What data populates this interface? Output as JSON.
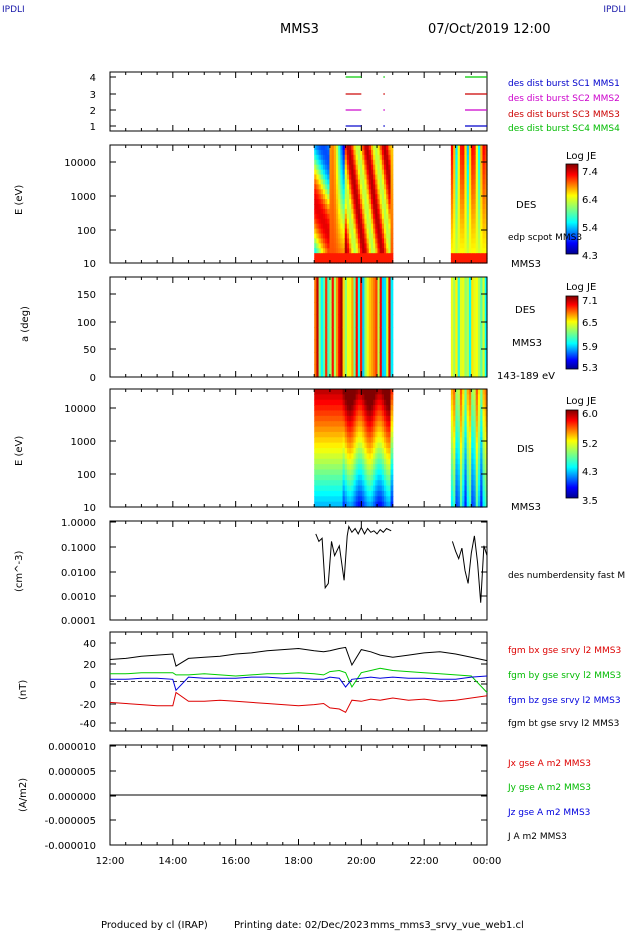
{
  "header": {
    "corner_label": "IPDLI",
    "spacecraft": "MMS3",
    "date_time": "07/Oct/2019 12:00"
  },
  "footer": {
    "produced_by": "Produced by cl (IRAP)",
    "printing_date": "Printing date: 02/Dec/2023",
    "filename": "mms_mms3_srvy_vue_web1.cl"
  },
  "colors": {
    "sc1": "#0000cc",
    "sc2": "#cc00cc",
    "sc3": "#cc0000",
    "sc4": "#00cc00",
    "bx": "#dd0000",
    "by": "#00cc00",
    "bz": "#0000dd",
    "bt": "#000000"
  },
  "panels": {
    "burst": {
      "ytick_labels": [
        "4",
        "3",
        "2",
        "1"
      ],
      "legend": [
        "des dist burst SC1 MMS1",
        "des dist burst SC2 MMS2",
        "des dist burst SC3 MMS3",
        "des dist burst SC4 MMS4"
      ]
    },
    "des_energy": {
      "ylabel": "E (eV)",
      "ytick_labels": [
        "10000",
        "1000",
        "100",
        "10"
      ],
      "species": "DES",
      "note": "edp scpot MMS3",
      "spacecraft": "MMS3",
      "cb_title": "Log JE",
      "cb_ticks": [
        "7.4",
        "6.4",
        "5.4",
        "4.3"
      ]
    },
    "des_pitch": {
      "ylabel": "a (deg)",
      "ytick_labels": [
        "150",
        "100",
        "50",
        "0"
      ],
      "species": "DES",
      "spacecraft": "MMS3",
      "energy_range": "143-189 eV",
      "cb_title": "Log JE",
      "cb_ticks": [
        "7.1",
        "6.5",
        "5.9",
        "5.3"
      ]
    },
    "dis_energy": {
      "ylabel": "E (eV)",
      "ytick_labels": [
        "10000",
        "1000",
        "100",
        "10"
      ],
      "species": "DIS",
      "spacecraft": "MMS3",
      "cb_title": "Log JE",
      "cb_ticks": [
        "6.0",
        "5.2",
        "4.3",
        "3.5"
      ]
    },
    "density": {
      "ylabel": "(cm^-3)",
      "ytick_labels": [
        "1.0000",
        "0.1000",
        "0.0100",
        "0.0010",
        "0.0001"
      ],
      "legend": "des numberdensity fast M"
    },
    "bfield": {
      "ylabel": "(nT)",
      "ytick_labels": [
        "40",
        "20",
        "0",
        "-20",
        "-40"
      ],
      "legend": [
        "fgm bx gse srvy l2 MMS3",
        "fgm by gse srvy l2 MMS3",
        "fgm bz gse srvy l2 MMS3",
        "fgm bt gse srvy l2 MMS3"
      ]
    },
    "current": {
      "ylabel": "(A/m2)",
      "ytick_labels": [
        "0.000010",
        "0.000005",
        "0.000000",
        "-0.000005",
        "-0.000010"
      ],
      "legend": [
        "Jx gse A m2 MMS3",
        "Jy gse A m2 MMS3",
        "Jz gse A m2 MMS3",
        "J A m2 MMS3"
      ]
    }
  },
  "xaxis": {
    "tick_labels": [
      "12:00",
      "14:00",
      "16:00",
      "18:00",
      "20:00",
      "22:00",
      "00:00"
    ]
  },
  "chart_data": {
    "type": "line",
    "x_unit": "hours since 07/Oct/2019 12:00 UT",
    "xlim": [
      12,
      24
    ],
    "data_intervals": [
      [
        18.5,
        21.0
      ],
      [
        22.85,
        24.0
      ]
    ],
    "burst_intervals": {
      "MMS1": [
        [
          19.5,
          20.0
        ],
        [
          20.7,
          20.75
        ],
        [
          23.3,
          24.0
        ]
      ],
      "MMS2": [
        [
          19.5,
          20.0
        ],
        [
          20.7,
          20.75
        ],
        [
          23.3,
          24.0
        ]
      ],
      "MMS3": [
        [
          19.5,
          20.0
        ],
        [
          20.7,
          20.75
        ],
        [
          23.3,
          24.0
        ]
      ],
      "MMS4": [
        [
          19.5,
          20.0
        ],
        [
          20.7,
          20.75
        ],
        [
          23.3,
          24.0
        ]
      ]
    },
    "density": {
      "ylim": [
        0.0001,
        1.0
      ],
      "scale": "log",
      "x": [
        18.55,
        18.65,
        18.75,
        18.85,
        18.95,
        19.05,
        19.15,
        19.3,
        19.45,
        19.55,
        19.6,
        19.7,
        19.8,
        19.9,
        20.0,
        20.1,
        20.2,
        20.3,
        20.4,
        20.5,
        20.6,
        20.7,
        20.8,
        20.95,
        22.9,
        23.0,
        23.1,
        23.2,
        23.3,
        23.4,
        23.5,
        23.6,
        23.7,
        23.8,
        23.9,
        24.0
      ],
      "y": [
        0.3,
        0.15,
        0.2,
        0.002,
        0.003,
        0.15,
        0.04,
        0.1,
        0.004,
        0.25,
        0.6,
        0.35,
        0.5,
        0.3,
        0.55,
        0.3,
        0.5,
        0.35,
        0.4,
        0.3,
        0.45,
        0.35,
        0.5,
        0.4,
        0.15,
        0.06,
        0.03,
        0.08,
        0.01,
        0.003,
        0.05,
        0.25,
        0.02,
        0.0005,
        0.1,
        0.04
      ]
    },
    "bfield": {
      "ylim": [
        -45,
        45
      ],
      "x": [
        12.0,
        12.5,
        13.0,
        13.5,
        14.0,
        14.1,
        14.5,
        15.0,
        15.5,
        16.0,
        16.5,
        17.0,
        17.5,
        18.0,
        18.5,
        18.8,
        19.0,
        19.3,
        19.5,
        19.7,
        20.0,
        20.3,
        20.6,
        21.0,
        21.5,
        22.0,
        22.5,
        23.0,
        23.5,
        24.0
      ],
      "series": [
        {
          "name": "fgm bx gse srvy l2 MMS3",
          "values": [
            -19,
            -20,
            -21,
            -22,
            -22,
            -10,
            -18,
            -18,
            -17,
            -18,
            -19,
            -20,
            -21,
            -22,
            -21,
            -20,
            -24,
            -25,
            -28,
            -17,
            -18,
            -16,
            -17,
            -15,
            -17,
            -16,
            -18,
            -17,
            -15,
            -13
          ]
        },
        {
          "name": "fgm by gse srvy l2 MMS3",
          "values": [
            7,
            7,
            8,
            8,
            8,
            6,
            6,
            7,
            6,
            5,
            6,
            7,
            7,
            8,
            7,
            6,
            9,
            10,
            8,
            -5,
            8,
            10,
            12,
            10,
            9,
            8,
            7,
            6,
            5,
            -10
          ]
        },
        {
          "name": "fgm bz gse srvy l2 MMS3",
          "values": [
            2,
            2,
            3,
            3,
            2,
            -8,
            4,
            3,
            3,
            3,
            4,
            4,
            3,
            3,
            2,
            2,
            4,
            3,
            -5,
            2,
            3,
            4,
            3,
            4,
            3,
            3,
            2,
            2,
            4,
            5
          ]
        },
        {
          "name": "fgm bt gse srvy l2 MMS3",
          "values": [
            20,
            21,
            23,
            24,
            25,
            14,
            21,
            22,
            23,
            25,
            26,
            28,
            29,
            30,
            28,
            27,
            28,
            30,
            31,
            15,
            29,
            27,
            24,
            22,
            24,
            26,
            27,
            25,
            22,
            19
          ]
        }
      ]
    },
    "current": {
      "ylim": [
        -1e-05,
        1e-05
      ],
      "x": [
        12.0,
        24.0
      ],
      "series": [
        {
          "name": "J A m2 MMS3",
          "values": [
            0.0,
            0.0
          ]
        }
      ]
    }
  }
}
